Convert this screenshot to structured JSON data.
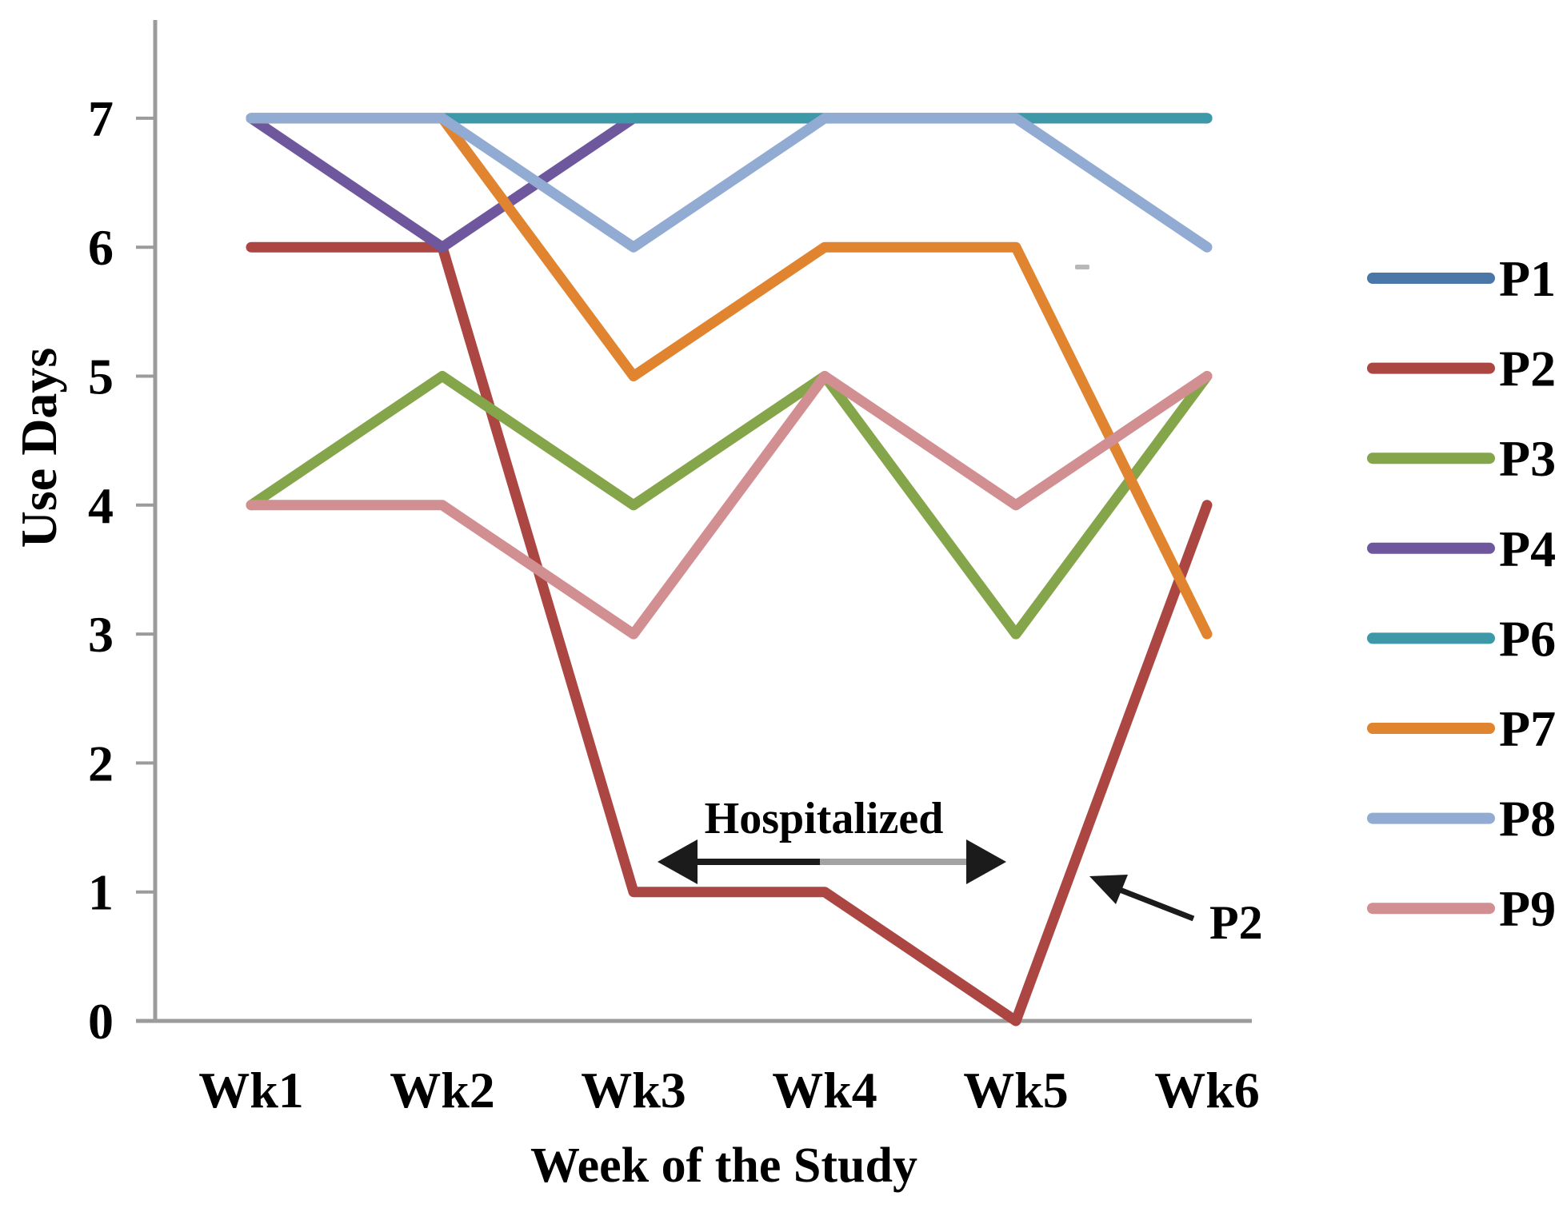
{
  "figure": {
    "background": "#ffffff",
    "axis_color": "#9b9b9b",
    "text_color": "#000000",
    "annotation_arrow_color": "#1b1b1b",
    "annotation_arrow_gray": "#a3a3a3"
  },
  "chart_data": {
    "type": "line",
    "title": "",
    "xlabel": "Week of the Study",
    "ylabel": "Use Days",
    "categories": [
      "Wk1",
      "Wk2",
      "Wk3",
      "Wk4",
      "Wk5",
      "Wk6"
    ],
    "yticks": [
      0,
      1,
      2,
      3,
      4,
      5,
      6,
      7
    ],
    "ylim": [
      0,
      7
    ],
    "grid": false,
    "legend_position": "right",
    "series": [
      {
        "name": "P1",
        "color": "#4a77a8",
        "values": [
          7,
          7,
          7,
          7,
          7,
          7
        ]
      },
      {
        "name": "P2",
        "color": "#ab4642",
        "values": [
          6,
          6,
          1,
          1,
          0,
          4
        ]
      },
      {
        "name": "P3",
        "color": "#85a54a",
        "values": [
          4,
          5,
          4,
          5,
          3,
          5
        ]
      },
      {
        "name": "P4",
        "color": "#6f579d",
        "values": [
          7,
          6,
          7,
          7,
          7,
          7
        ]
      },
      {
        "name": "P6",
        "color": "#3d98a8",
        "values": [
          7,
          7,
          7,
          7,
          7,
          7
        ]
      },
      {
        "name": "P7",
        "color": "#e0842f",
        "values": [
          7,
          7,
          5,
          6,
          6,
          3
        ]
      },
      {
        "name": "P8",
        "color": "#92abd3",
        "values": [
          7,
          7,
          6,
          7,
          7,
          6
        ]
      },
      {
        "name": "P9",
        "color": "#d28f92",
        "values": [
          4,
          4,
          3,
          5,
          4,
          5
        ]
      }
    ],
    "annotations": [
      {
        "id": "hospitalized",
        "text": "Hospitalized"
      },
      {
        "id": "p2-callout",
        "text": "P2"
      }
    ]
  }
}
